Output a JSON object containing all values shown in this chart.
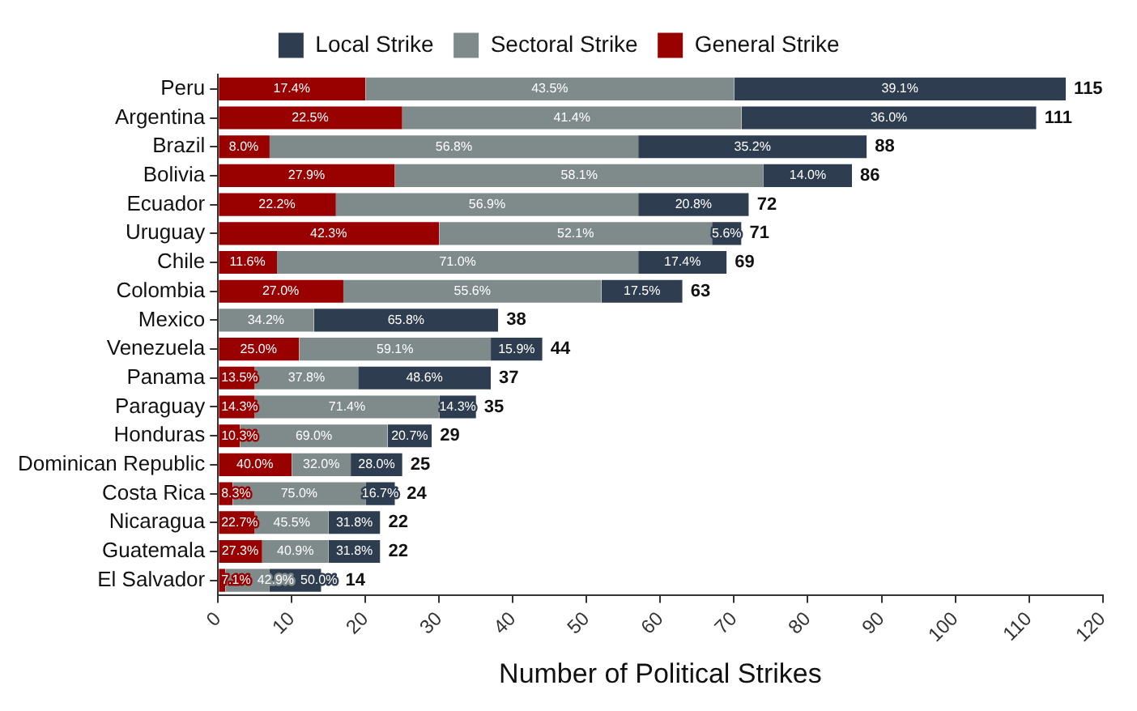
{
  "chart_data": {
    "type": "bar",
    "orientation": "horizontal",
    "stacked": true,
    "legend": "top",
    "grid": false,
    "xlabel": "Number of Political Strikes",
    "categories": [
      "Peru",
      "Argentina",
      "Brazil",
      "Bolivia",
      "Ecuador",
      "Uruguay",
      "Chile",
      "Colombia",
      "Mexico",
      "Venezuela",
      "Panama",
      "Paraguay",
      "Honduras",
      "Dominican Republic",
      "Costa Rica",
      "Nicaragua",
      "Guatemala",
      "El Salvador"
    ],
    "series": [
      {
        "name": "General Strike",
        "color": "#990000",
        "values": [
          20,
          25,
          7,
          24,
          16,
          30,
          8,
          17,
          0,
          11,
          5,
          5,
          3,
          10,
          2,
          5,
          6,
          1
        ]
      },
      {
        "name": "Sectoral Strike",
        "color": "#7f8a8b",
        "values": [
          50,
          46,
          50,
          50,
          41,
          37,
          49,
          35,
          13,
          26,
          14,
          25,
          20,
          8,
          18,
          10,
          9,
          6
        ]
      },
      {
        "name": "Local Strike",
        "color": "#2e3d50",
        "values": [
          45,
          40,
          31,
          12,
          15,
          4,
          12,
          11,
          25,
          7,
          18,
          5,
          6,
          7,
          4,
          7,
          7,
          7
        ]
      }
    ],
    "totals": [
      "115",
      "111",
      "88",
      "86",
      "72",
      "71",
      "69",
      "63",
      "38",
      "44",
      "37",
      "35",
      "29",
      "25",
      "24",
      "22",
      "22",
      "14"
    ],
    "annotations": [
      {
        "text": "17.4%",
        "x": 10,
        "y": "Peru"
      },
      {
        "text": "43.5%",
        "x": 45,
        "y": "Peru"
      },
      {
        "text": "39.1%",
        "x": 92.5,
        "y": "Peru"
      },
      {
        "text": "22.5%",
        "x": 12.5,
        "y": "Argentina"
      },
      {
        "text": "41.4%",
        "x": 48,
        "y": "Argentina"
      },
      {
        "text": "36.0%",
        "x": 91,
        "y": "Argentina"
      },
      {
        "text": "8.0%",
        "x": 3.5,
        "y": "Brazil"
      },
      {
        "text": "56.8%",
        "x": 32,
        "y": "Brazil"
      },
      {
        "text": "35.2%",
        "x": 72.5,
        "y": "Brazil"
      },
      {
        "text": "27.9%",
        "x": 12,
        "y": "Bolivia"
      },
      {
        "text": "58.1%",
        "x": 49,
        "y": "Bolivia"
      },
      {
        "text": "14.0%",
        "x": 80,
        "y": "Bolivia"
      },
      {
        "text": "22.2%",
        "x": 8,
        "y": "Ecuador"
      },
      {
        "text": "56.9%",
        "x": 36.5,
        "y": "Ecuador"
      },
      {
        "text": "20.8%",
        "x": 64.5,
        "y": "Ecuador"
      },
      {
        "text": "42.3%",
        "x": 15,
        "y": "Uruguay"
      },
      {
        "text": "52.1%",
        "x": 48.5,
        "y": "Uruguay"
      },
      {
        "text": "5.6%",
        "x": 69,
        "y": "Uruguay"
      },
      {
        "text": "11.6%",
        "x": 4,
        "y": "Chile"
      },
      {
        "text": "71.0%",
        "x": 32.5,
        "y": "Chile"
      },
      {
        "text": "17.4%",
        "x": 63,
        "y": "Chile"
      },
      {
        "text": "27.0%",
        "x": 8.5,
        "y": "Colombia"
      },
      {
        "text": "55.6%",
        "x": 34.5,
        "y": "Colombia"
      },
      {
        "text": "17.5%",
        "x": 57.5,
        "y": "Colombia"
      },
      {
        "text": "34.2%",
        "x": 6.5,
        "y": "Mexico"
      },
      {
        "text": "65.8%",
        "x": 25.5,
        "y": "Mexico"
      },
      {
        "text": "25.0%",
        "x": 5.5,
        "y": "Venezuela"
      },
      {
        "text": "59.1%",
        "x": 24,
        "y": "Venezuela"
      },
      {
        "text": "15.9%",
        "x": 40.5,
        "y": "Venezuela"
      },
      {
        "text": "13.5%",
        "x": 2.5,
        "y": "Panama"
      },
      {
        "text": "37.8%",
        "x": 12,
        "y": "Panama"
      },
      {
        "text": "48.6%",
        "x": 28,
        "y": "Panama"
      },
      {
        "text": "14.3%",
        "x": 2.5,
        "y": "Paraguay"
      },
      {
        "text": "71.4%",
        "x": 17.5,
        "y": "Paraguay"
      },
      {
        "text": "14.3%",
        "x": 32.5,
        "y": "Paraguay"
      },
      {
        "text": "10.3%",
        "x": 1.5,
        "y": "Honduras"
      },
      {
        "text": "69.0%",
        "x": 13,
        "y": "Honduras"
      },
      {
        "text": "20.7%",
        "x": 26,
        "y": "Honduras"
      },
      {
        "text": "40.0%",
        "x": 5,
        "y": "Dominican Republic"
      },
      {
        "text": "32.0%",
        "x": 14,
        "y": "Dominican Republic"
      },
      {
        "text": "28.0%",
        "x": 21.5,
        "y": "Dominican Republic"
      },
      {
        "text": "8.3%",
        "x": 1,
        "y": "Costa Rica"
      },
      {
        "text": "75.0%",
        "x": 11,
        "y": "Costa Rica"
      },
      {
        "text": "16.7%",
        "x": 22,
        "y": "Costa Rica"
      },
      {
        "text": "22.7%",
        "x": 2.5,
        "y": "Nicaragua"
      },
      {
        "text": "45.5%",
        "x": 10,
        "y": "Nicaragua"
      },
      {
        "text": "31.8%",
        "x": 18.5,
        "y": "Nicaragua"
      },
      {
        "text": "27.3%",
        "x": 3,
        "y": "Guatemala"
      },
      {
        "text": "40.9%",
        "x": 10.5,
        "y": "Guatemala"
      },
      {
        "text": "31.8%",
        "x": 18.5,
        "y": "Guatemala"
      },
      {
        "text": "7.1%",
        "x": 0.5,
        "y": "El Salvador"
      },
      {
        "text": "42.9%",
        "x": 4,
        "y": "El Salvador"
      },
      {
        "text": "50.0%",
        "x": 10.5,
        "y": "El Salvador"
      }
    ],
    "xlim": [
      0,
      120
    ],
    "xticks": [
      0,
      10,
      20,
      30,
      40,
      50,
      60,
      70,
      80,
      90,
      100,
      110,
      120
    ]
  }
}
